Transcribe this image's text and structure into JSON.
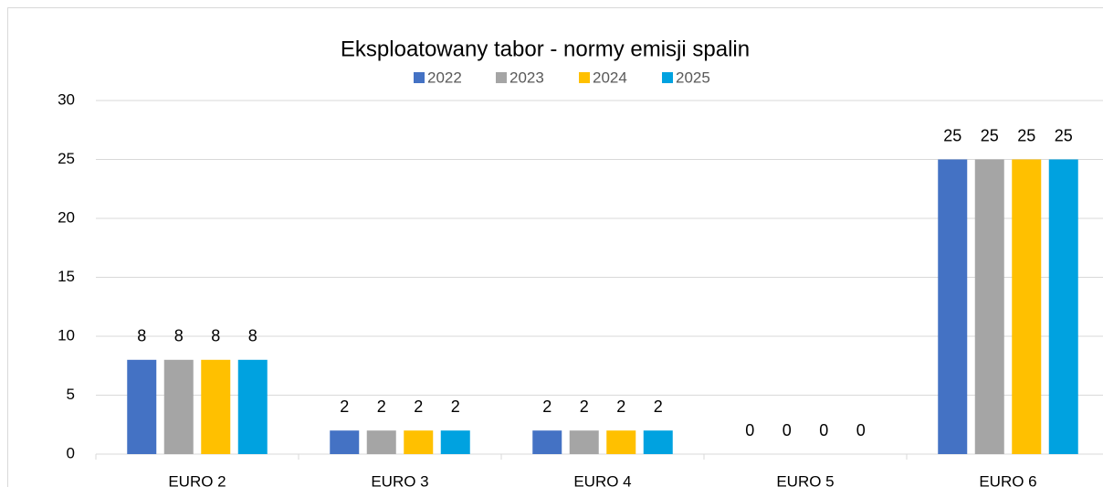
{
  "chart_data": {
    "type": "bar",
    "title": "Eksploatowany tabor - normy emisji spalin",
    "categories": [
      "EURO 2",
      "EURO 3",
      "EURO 4",
      "EURO 5",
      "EURO 6"
    ],
    "series": [
      {
        "name": "2022",
        "color": "#4472c4",
        "values": [
          8,
          2,
          2,
          0,
          25
        ]
      },
      {
        "name": "2023",
        "color": "#a5a5a5",
        "values": [
          8,
          2,
          2,
          0,
          25
        ]
      },
      {
        "name": "2024",
        "color": "#ffc000",
        "values": [
          8,
          2,
          2,
          0,
          25
        ]
      },
      {
        "name": "2025",
        "color": "#00a2e0",
        "values": [
          8,
          2,
          2,
          0,
          25
        ]
      }
    ],
    "ylim": [
      0,
      30
    ],
    "yticks": [
      0,
      5,
      10,
      15,
      20,
      25,
      30
    ],
    "grid": true,
    "legend": "top"
  }
}
